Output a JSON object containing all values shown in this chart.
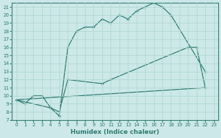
{
  "xlabel": "Humidex (Indice chaleur)",
  "bg_color": "#cce8e8",
  "line_color": "#2d7a70",
  "grid_color": "#b0d8d0",
  "xlim": [
    -0.5,
    23.5
  ],
  "ylim": [
    7,
    21.5
  ],
  "yticks": [
    7,
    8,
    9,
    10,
    11,
    12,
    13,
    14,
    15,
    16,
    17,
    18,
    19,
    20,
    21
  ],
  "xticks": [
    0,
    1,
    2,
    3,
    4,
    5,
    6,
    7,
    8,
    9,
    10,
    11,
    12,
    13,
    14,
    15,
    16,
    17,
    18,
    19,
    20,
    21,
    22,
    23
  ],
  "curve_upper": {
    "x": [
      0,
      4,
      5,
      6,
      7,
      8,
      9,
      10,
      11,
      12,
      13,
      14,
      15,
      16,
      17,
      18,
      22
    ],
    "y": [
      9.5,
      8.5,
      7.5,
      16.0,
      18.0,
      18.5,
      18.5,
      19.5,
      19.0,
      20.0,
      19.5,
      20.5,
      21.0,
      21.5,
      21.0,
      20.0,
      13.0
    ]
  },
  "curve_middle": {
    "x": [
      0,
      1,
      2,
      3,
      4,
      5,
      6,
      10,
      11,
      20,
      21,
      22
    ],
    "y": [
      9.5,
      9.0,
      10.0,
      10.0,
      8.5,
      8.0,
      12.0,
      11.5,
      12.0,
      16.0,
      16.0,
      11.0
    ]
  },
  "curve_lower": {
    "x": [
      0,
      22
    ],
    "y": [
      9.5,
      11.0
    ]
  }
}
